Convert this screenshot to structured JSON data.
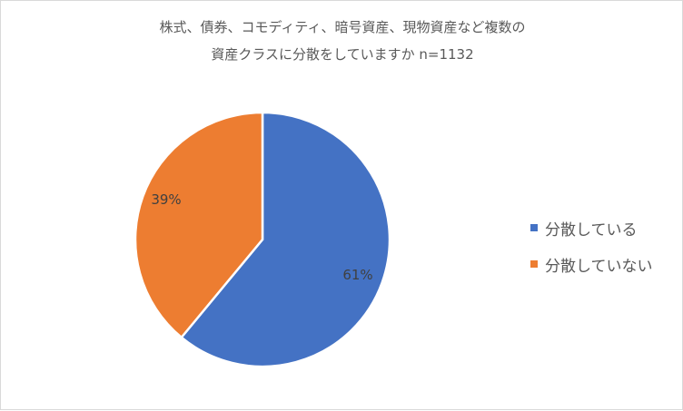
{
  "chart_data": {
    "type": "pie",
    "title_lines": [
      "株式、債券、コモディティ、暗号資産、現物資産など複数の",
      "資産クラスに分散をしていますか  n=1132"
    ],
    "slices": [
      {
        "label": "分散している",
        "value": 61,
        "data_label": "61%",
        "color": "#4472C4"
      },
      {
        "label": "分散していない",
        "value": 39,
        "data_label": "39%",
        "color": "#ED7D31"
      }
    ],
    "legend_position": "right"
  }
}
